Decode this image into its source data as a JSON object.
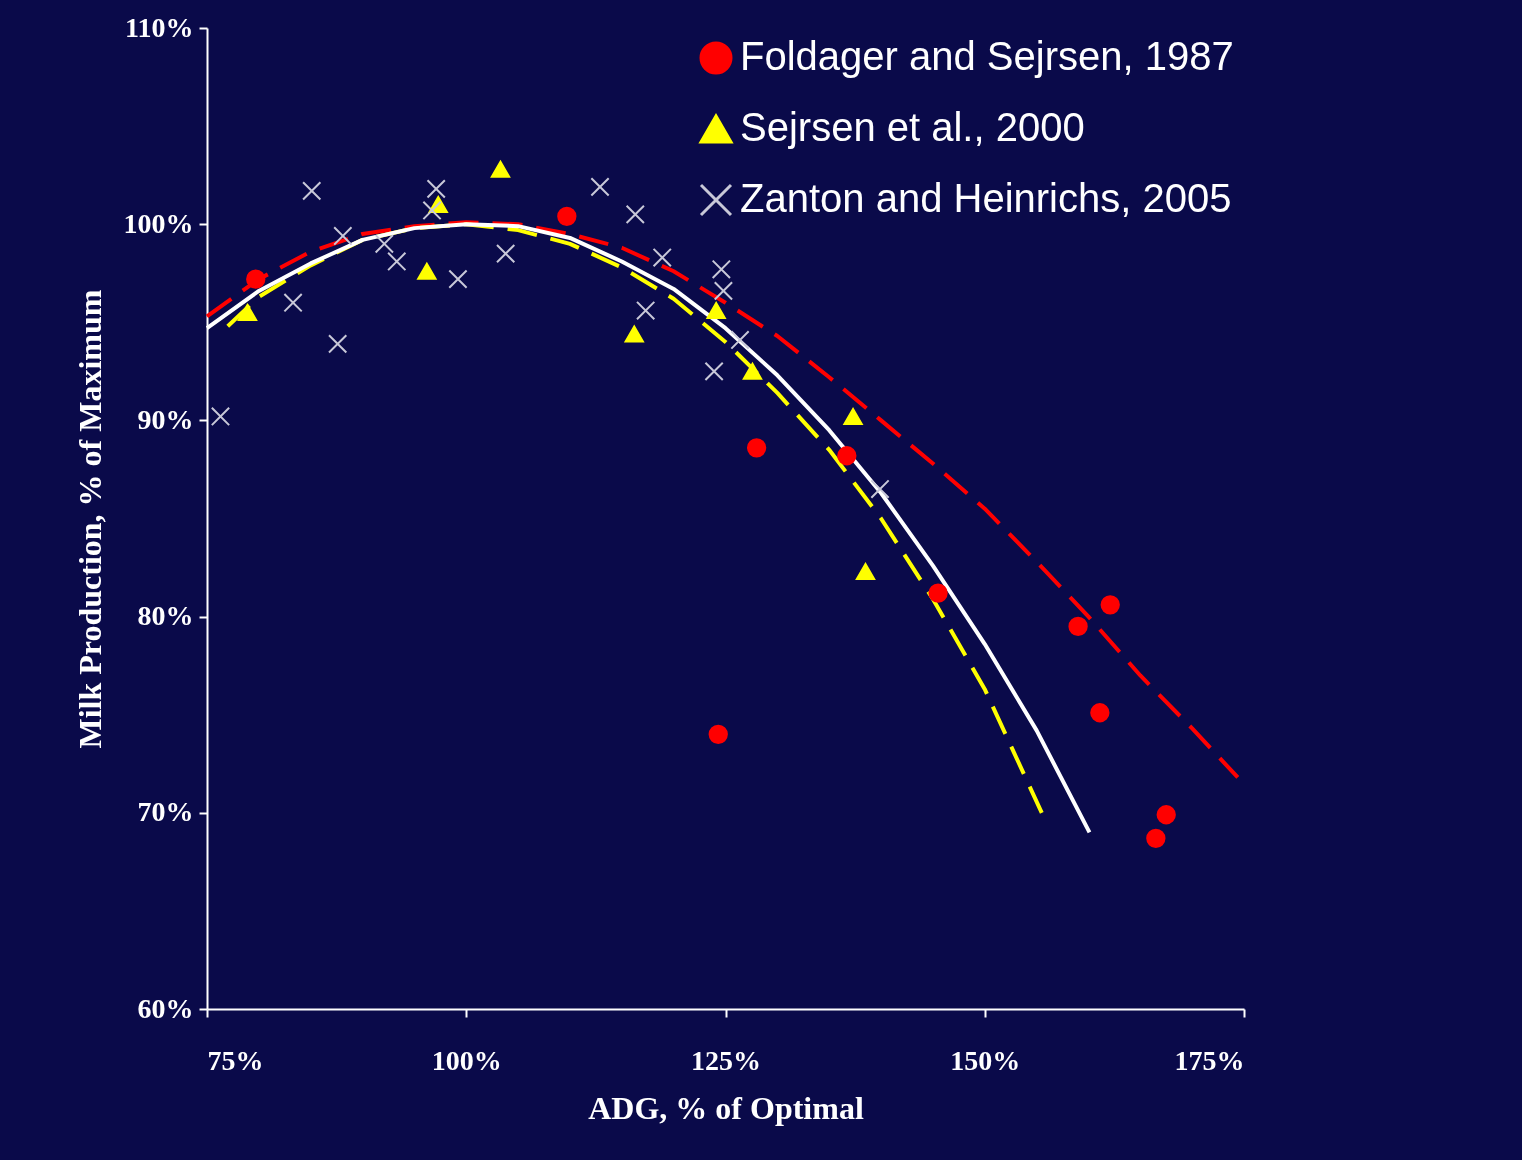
{
  "chart_data": {
    "type": "scatter",
    "xlabel": "ADG, % of Optimal",
    "ylabel": "Milk Production, % of Maximum",
    "xlim": [
      75,
      175
    ],
    "ylim": [
      60,
      110
    ],
    "xticks": [
      {
        "value": 75,
        "label": "75%"
      },
      {
        "value": 100,
        "label": "100%"
      },
      {
        "value": 125,
        "label": "125%"
      },
      {
        "value": 150,
        "label": "150%"
      },
      {
        "value": 175,
        "label": "175%"
      }
    ],
    "yticks": [
      {
        "value": 60,
        "label": "60%"
      },
      {
        "value": 70,
        "label": "70%"
      },
      {
        "value": 80,
        "label": "80%"
      },
      {
        "value": 90,
        "label": "90%"
      },
      {
        "value": 100,
        "label": "100%"
      },
      {
        "value": 110,
        "label": "110%"
      }
    ],
    "grid": false,
    "legend": "top right",
    "series": [
      {
        "type": "line",
        "color": "#ff0000",
        "line_style": "dashed",
        "x": [
          75,
          80,
          85,
          90,
          95,
          100,
          105,
          110,
          115,
          120,
          125,
          130,
          135,
          140,
          145,
          150,
          155,
          160,
          165,
          170,
          174.4
        ],
        "values": [
          95.3,
          97.2,
          98.6,
          99.5,
          99.9,
          100.1,
          100.0,
          99.5,
          98.8,
          97.6,
          96.0,
          94.3,
          92.2,
          90.0,
          87.8,
          85.5,
          82.8,
          80.0,
          77.0,
          74.3,
          71.8
        ]
      },
      {
        "type": "line",
        "color": "#ffff00",
        "line_style": "dashed",
        "x": [
          77,
          80,
          85,
          90,
          95,
          100,
          105,
          110,
          115,
          120,
          125,
          130,
          135,
          140,
          145,
          150,
          155.5
        ],
        "values": [
          94.8,
          96.3,
          97.9,
          99.2,
          99.8,
          100.0,
          99.7,
          99.0,
          97.8,
          96.2,
          94.0,
          91.4,
          88.5,
          85.0,
          80.9,
          76.3,
          70.0
        ]
      },
      {
        "type": "line",
        "color": "#ffffff",
        "line_style": "solid",
        "x": [
          75,
          80,
          85,
          90,
          95,
          100,
          105,
          110,
          115,
          120,
          125,
          130,
          135,
          140,
          145,
          150,
          155,
          160.1
        ],
        "values": [
          94.7,
          96.6,
          98.0,
          99.2,
          99.8,
          100.0,
          99.9,
          99.3,
          98.1,
          96.7,
          94.7,
          92.3,
          89.5,
          86.3,
          82.6,
          78.6,
          74.2,
          69.0
        ]
      },
      {
        "name": "Foldager and Sejrsen, 1987",
        "color": "#ff0000",
        "marker": "circle",
        "x": [
          79.7,
          109.7,
          128.0,
          124.3,
          136.7,
          145.5,
          159.0,
          162.1,
          161.1,
          166.5,
          167.5
        ],
        "values": [
          97.2,
          100.4,
          88.6,
          74.0,
          88.2,
          81.2,
          79.5,
          80.6,
          75.1,
          68.7,
          69.9
        ]
      },
      {
        "name": "Sejrsen et al., 2000",
        "color": "#ffff00",
        "marker": "triangle",
        "x": [
          78.9,
          96.2,
          97.3,
          103.3,
          116.2,
          124.1,
          127.6,
          137.3,
          138.5
        ],
        "values": [
          95.5,
          97.6,
          101.0,
          102.8,
          94.4,
          95.6,
          92.5,
          90.2,
          82.3
        ]
      },
      {
        "name": "Zanton and Heinrichs, 2005",
        "color": "#c8c8d8",
        "marker": "cross",
        "x": [
          76.3,
          85.1,
          83.3,
          87.6,
          88.1,
          92.1,
          93.3,
          97.1,
          96.7,
          99.2,
          103.8,
          112.9,
          116.3,
          118.9,
          117.3,
          123.9,
          124.6,
          124.8,
          126.4,
          139.9
        ],
        "values": [
          90.2,
          101.7,
          96.0,
          93.9,
          99.4,
          99.0,
          98.1,
          101.8,
          100.7,
          97.2,
          98.5,
          101.9,
          100.5,
          98.3,
          95.6,
          92.5,
          97.7,
          96.6,
          94.1,
          86.5
        ]
      }
    ]
  }
}
